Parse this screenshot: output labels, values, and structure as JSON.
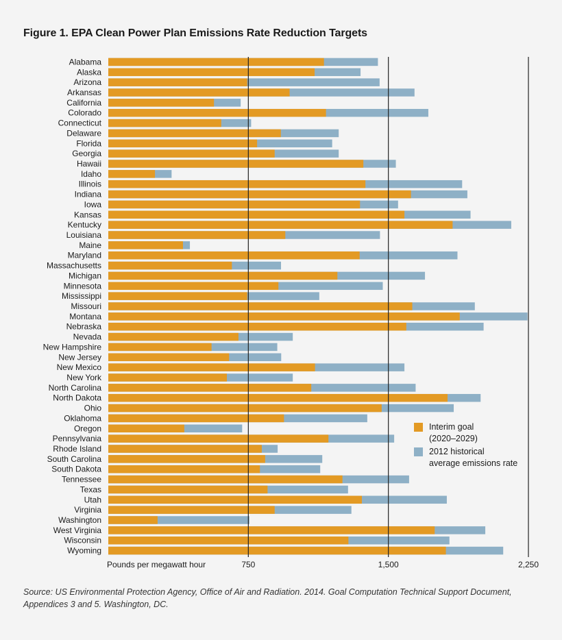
{
  "title": "Figure 1. EPA Clean Power Plan Emissions Rate Reduction Targets",
  "source": "Source: US Environmental Protection Agency, Office of Air and Radiation. 2014. Goal Computation Technical Support Document, Appendices 3 and 5. Washington, DC.",
  "colors": {
    "interim": "#e39a24",
    "historical": "#8eb0c6",
    "grid": "#222222"
  },
  "legend": {
    "interim": "Interim goal\n(2020–2029)",
    "historical": "2012 historical\naverage emissions rate"
  },
  "chart_data": {
    "type": "bar",
    "orientation": "horizontal",
    "layout": "overlaid",
    "xlabel": "Pounds per megawatt hour",
    "xlim": [
      0,
      2250
    ],
    "xticks": [
      750,
      1500,
      2250
    ],
    "xtick_labels": [
      "750",
      "1,500",
      "2,250"
    ],
    "grid": "vertical lines at ticks",
    "legend_position": "lower-right",
    "categories": [
      "Alabama",
      "Alaska",
      "Arizona",
      "Arkansas",
      "California",
      "Colorado",
      "Connecticut",
      "Delaware",
      "Florida",
      "Georgia",
      "Hawaii",
      "Idaho",
      "Illinois",
      "Indiana",
      "Iowa",
      "Kansas",
      "Kentucky",
      "Louisiana",
      "Maine",
      "Maryland",
      "Massachusetts",
      "Michigan",
      "Minnesota",
      "Mississippi",
      "Missouri",
      "Montana",
      "Nebraska",
      "Nevada",
      "New Hampshire",
      "New Jersey",
      "New Mexico",
      "New York",
      "North Carolina",
      "North Dakota",
      "Ohio",
      "Oklahoma",
      "Oregon",
      "Pennsylvania",
      "Rhode Island",
      "South Carolina",
      "South Dakota",
      "Tennessee",
      "Texas",
      "Utah",
      "Virginia",
      "Washington",
      "West Virginia",
      "Wisconsin",
      "Wyoming"
    ],
    "series": [
      {
        "name": "Interim goal (2020–2029)",
        "values": [
          1155,
          1105,
          744,
          971,
          566,
          1166,
          605,
          924,
          797,
          891,
          1366,
          250,
          1377,
          1621,
          1348,
          1586,
          1844,
          948,
          400,
          1346,
          662,
          1227,
          911,
          744,
          1628,
          1882,
          1596,
          697,
          553,
          647,
          1107,
          635,
          1087,
          1817,
          1464,
          941,
          407,
          1179,
          822,
          840,
          812,
          1254,
          853,
          1358,
          891,
          264,
          1748,
          1286,
          1808
        ]
      },
      {
        "name": "2012 historical average emissions rate",
        "values": [
          1444,
          1351,
          1453,
          1640,
          709,
          1714,
          765,
          1234,
          1199,
          1234,
          1540,
          339,
          1895,
          1923,
          1552,
          1940,
          2158,
          1455,
          437,
          1870,
          925,
          1696,
          1470,
          1130,
          1963,
          2245,
          2010,
          988,
          905,
          926,
          1586,
          988,
          1646,
          1994,
          1850,
          1387,
          717,
          1531,
          907,
          1146,
          1135,
          1611,
          1284,
          1813,
          1302,
          756,
          2019,
          1827,
          2115
        ]
      }
    ]
  }
}
